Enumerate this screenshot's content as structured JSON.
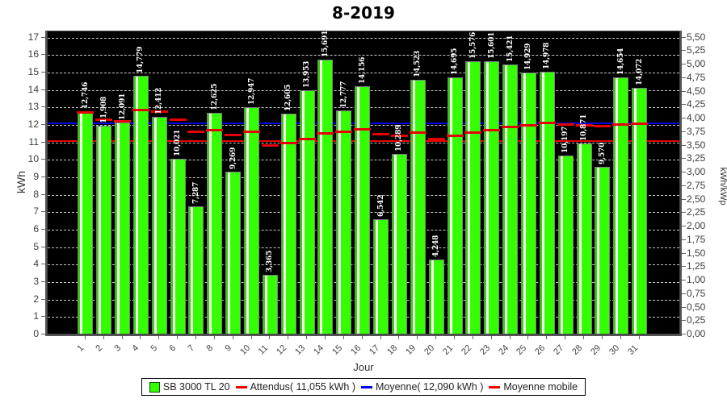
{
  "title": "8-2019",
  "chart_data": {
    "type": "bar",
    "title": "8-2019",
    "xlabel": "Jour",
    "ylabel_left": "kWh",
    "ylabel_right": "kWh/kWp",
    "ylim_left": [
      0,
      17
    ],
    "ylim_right": [
      0,
      5.5
    ],
    "grid": true,
    "plot_background": "#000000",
    "gridline_color": "#c9c9c9",
    "legend_position": "bottom",
    "left_ticks": [
      "0",
      "1",
      "2",
      "3",
      "4",
      "5",
      "6",
      "7",
      "8",
      "9",
      "10",
      "11",
      "12",
      "13",
      "14",
      "15",
      "16",
      "17"
    ],
    "right_ticks": [
      "0,00",
      "0,25",
      "0,50",
      "0,75",
      "1,00",
      "1,25",
      "1,50",
      "1,75",
      "2,00",
      "2,25",
      "2,50",
      "2,75",
      "3,00",
      "3,25",
      "3,50",
      "3,75",
      "4,00",
      "4,25",
      "4,50",
      "4,75",
      "5,00",
      "5,25",
      "5,50"
    ],
    "categories": [
      "1",
      "2",
      "3",
      "4",
      "5",
      "6",
      "7",
      "8",
      "9",
      "10",
      "11",
      "12",
      "13",
      "14",
      "15",
      "16",
      "17",
      "18",
      "19",
      "20",
      "21",
      "22",
      "23",
      "24",
      "25",
      "26",
      "27",
      "28",
      "29",
      "30",
      "31"
    ],
    "bar_labels": [
      "12,746",
      "11,908",
      "12,091",
      "14,779",
      "12,412",
      "10,021",
      "7,287",
      "12,625",
      "9,269",
      "12,947",
      "3,365",
      "12,605",
      "13,953",
      "15,691",
      "12,777",
      "14,156",
      "6,542",
      "10,289",
      "14,523",
      "4,248",
      "14,695",
      "15,576",
      "15,601",
      "15,421",
      "14,929",
      "14,978",
      "10,197",
      "10,871",
      "9,570",
      "14,654",
      "14,072"
    ],
    "series": [
      {
        "name": "SB 3000 TL 20",
        "type": "bar",
        "color": "#33ff00",
        "values": [
          12.746,
          11.908,
          12.091,
          14.779,
          12.412,
          10.021,
          7.287,
          12.625,
          9.269,
          12.947,
          3.365,
          12.605,
          13.953,
          15.691,
          12.777,
          14.156,
          6.542,
          10.289,
          14.523,
          4.248,
          14.695,
          15.576,
          15.601,
          15.421,
          14.929,
          14.978,
          10.197,
          10.871,
          9.57,
          14.654,
          14.072
        ]
      },
      {
        "name": "Attendus( 11,055 kWh )",
        "type": "hline",
        "color": "#e60000",
        "value": 11.055
      },
      {
        "name": "Moyenne( 12,090 kWh )",
        "type": "hline",
        "color": "#0000e6",
        "value": 12.09
      },
      {
        "name": "Moyenne mobile",
        "type": "segments",
        "color": "#e60000",
        "values": [
          12.746,
          12.327,
          12.248,
          12.881,
          12.787,
          12.326,
          11.606,
          11.734,
          11.46,
          11.609,
          10.859,
          11.005,
          11.231,
          11.55,
          11.632,
          11.79,
          11.481,
          11.415,
          11.578,
          11.212,
          11.378,
          11.568,
          11.744,
          11.897,
          12.018,
          12.132,
          12.06,
          12.018,
          11.934,
          12.024,
          12.09
        ]
      }
    ],
    "legend_swatch_colors": {
      "bar": "#33ff00",
      "attendus": "#ff0000",
      "moyenne": "#0000ff",
      "moyenne_mobile": "#ff0000"
    }
  }
}
